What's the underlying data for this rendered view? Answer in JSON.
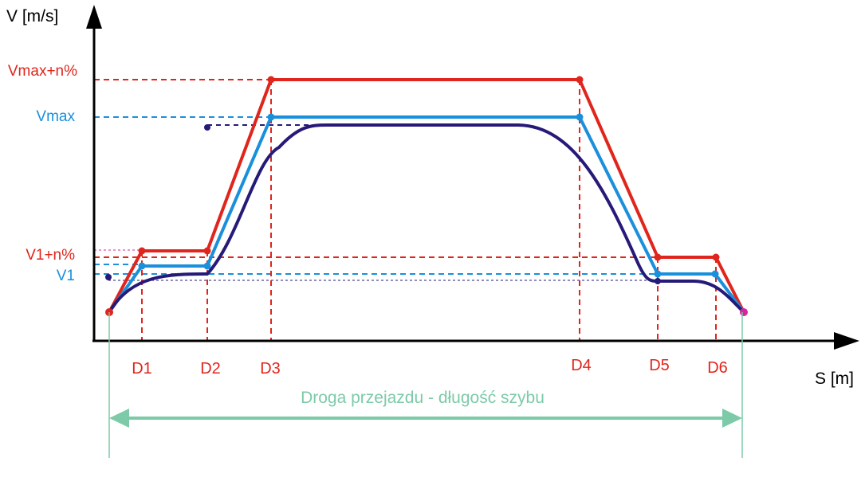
{
  "axes": {
    "y_title": "V [m/s]",
    "x_title": "S [m]"
  },
  "levels": {
    "vmax_n": "Vmax+n%",
    "vmax": "Vmax",
    "v1_n": "V1+n%",
    "v1": "V1"
  },
  "markers": [
    "D1",
    "D2",
    "D3",
    "D4",
    "D5",
    "D6"
  ],
  "span_label": "Droga przejazdu - długość szybu",
  "colors": {
    "red": "#e0251c",
    "blue": "#1a8fdb",
    "navy": "#261a78",
    "green": "#7ccaa8",
    "magenta": "#d6259b",
    "axis": "#000000"
  }
}
